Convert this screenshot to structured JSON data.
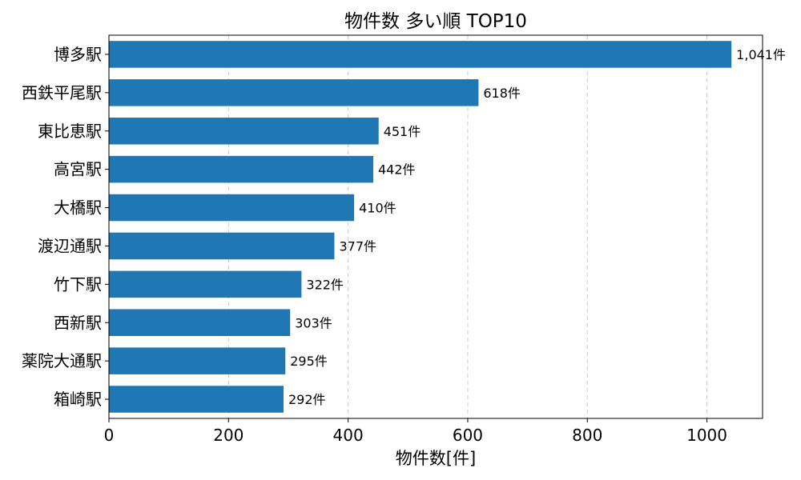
{
  "chart_data": {
    "type": "bar",
    "orientation": "horizontal",
    "title": "物件数 多い順 TOP10",
    "xlabel": "物件数[件]",
    "ylabel": "",
    "categories": [
      "博多駅",
      "西鉄平尾駅",
      "東比恵駅",
      "高宮駅",
      "大橋駅",
      "渡辺通駅",
      "竹下駅",
      "西新駅",
      "薬院大通駅",
      "箱崎駅"
    ],
    "values": [
      1041,
      618,
      451,
      442,
      410,
      377,
      322,
      303,
      295,
      292
    ],
    "value_labels": [
      "1,041件",
      "618件",
      "451件",
      "442件",
      "410件",
      "377件",
      "322件",
      "303件",
      "295件",
      "292件"
    ],
    "xlim": [
      0,
      1093
    ],
    "xticks": [
      0,
      200,
      400,
      600,
      800,
      1000
    ],
    "xtick_labels": [
      "0",
      "200",
      "400",
      "600",
      "800",
      "1000"
    ],
    "grid": "x-dashed",
    "bar_color": "#1f77b4",
    "grid_color": "#cccccc"
  }
}
